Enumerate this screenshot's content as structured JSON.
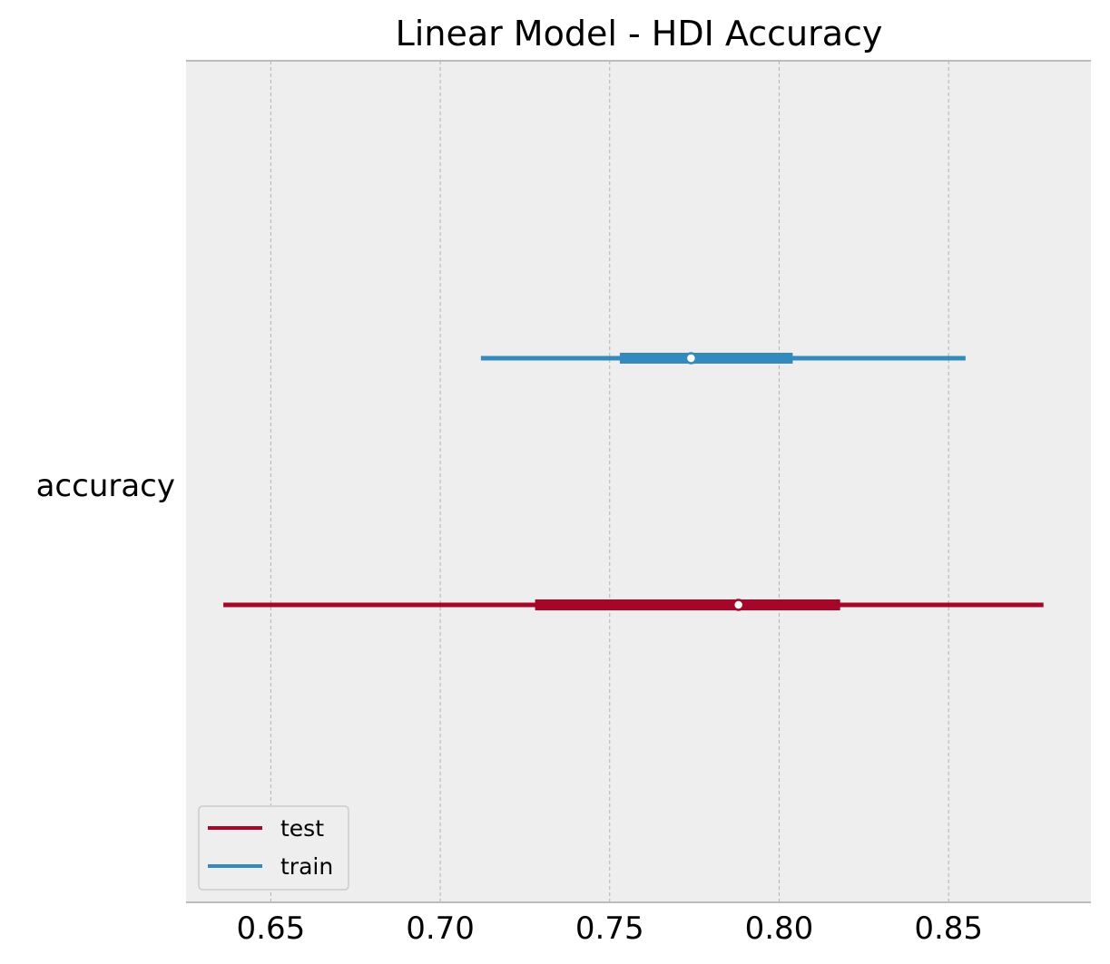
{
  "chart_data": {
    "type": "forest",
    "title": "Linear Model - HDI Accuracy",
    "category": "accuracy",
    "xlim": [
      0.625,
      0.892
    ],
    "xticks": [
      0.65,
      0.7,
      0.75,
      0.8,
      0.85
    ],
    "xtick_labels": [
      "0.65",
      "0.70",
      "0.75",
      "0.80",
      "0.85"
    ],
    "grid": "x, dashed",
    "legend_position": "lower-left",
    "series": [
      {
        "name": "test",
        "color": "#A60628",
        "hdi_low": 0.636,
        "hdi_high": 0.878,
        "iqr_low": 0.728,
        "iqr_high": 0.818,
        "point": 0.788
      },
      {
        "name": "train",
        "color": "#348ABD",
        "hdi_low": 0.712,
        "hdi_high": 0.855,
        "iqr_low": 0.753,
        "iqr_high": 0.804,
        "point": 0.774
      }
    ],
    "colors": {
      "axes_bg": "#EEEEEE",
      "grid": "#B2B2B2",
      "spine": "#BCBCBC"
    }
  }
}
